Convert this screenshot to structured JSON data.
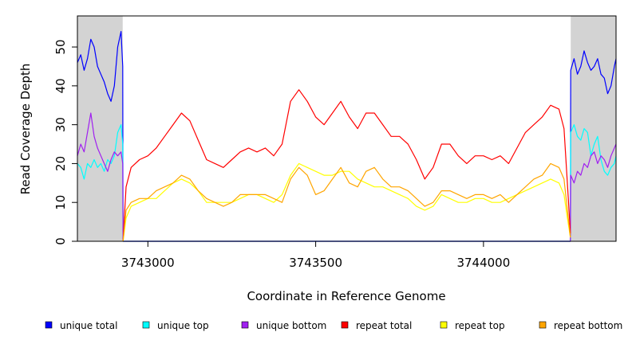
{
  "chart_data": {
    "type": "line",
    "title": "",
    "xlabel": "Coordinate in Reference Genome",
    "ylabel": "Read Coverage Depth",
    "xlim": [
      3742790,
      3744395
    ],
    "ylim": [
      0,
      58
    ],
    "x_ticks": [
      3743000,
      3743500,
      3744000
    ],
    "x_tick_labels": [
      "3743000",
      "3743500",
      "3744000"
    ],
    "y_ticks": [
      0,
      10,
      20,
      30,
      40,
      50
    ],
    "y_tick_labels": [
      "0",
      "10",
      "20",
      "30",
      "40",
      "50"
    ],
    "grid": false,
    "legend": "bottom",
    "shaded_regions": [
      {
        "x_start": 3742790,
        "x_end": 3742925,
        "color": "#d3d3d3"
      },
      {
        "x_start": 3744260,
        "x_end": 3744395,
        "color": "#d3d3d3"
      }
    ],
    "series": [
      {
        "name": "unique total",
        "color": "#0000ff",
        "x": [
          3742790,
          3742800,
          3742810,
          3742820,
          3742830,
          3742840,
          3742850,
          3742860,
          3742870,
          3742880,
          3742890,
          3742900,
          3742910,
          3742920,
          3742925,
          3742926,
          3744259,
          3744260,
          3744270,
          3744280,
          3744290,
          3744300,
          3744310,
          3744320,
          3744330,
          3744340,
          3744350,
          3744360,
          3744370,
          3744380,
          3744390,
          3744395
        ],
        "y": [
          46,
          48,
          44,
          47,
          52,
          50,
          45,
          43,
          41,
          38,
          36,
          40,
          50,
          54,
          45,
          0,
          0,
          44,
          47,
          43,
          45,
          49,
          46,
          44,
          45,
          47,
          43,
          42,
          38,
          40,
          45,
          47
        ]
      },
      {
        "name": "unique top",
        "color": "#00ffff",
        "x": [
          3742790,
          3742800,
          3742810,
          3742820,
          3742830,
          3742840,
          3742850,
          3742860,
          3742870,
          3742880,
          3742890,
          3742900,
          3742910,
          3742920,
          3742925,
          3742926,
          3744259,
          3744260,
          3744270,
          3744280,
          3744290,
          3744300,
          3744310,
          3744320,
          3744330,
          3744340,
          3744350,
          3744360,
          3744370,
          3744380,
          3744390,
          3744395
        ],
        "y": [
          20,
          19,
          16,
          20,
          19,
          21,
          19,
          20,
          18,
          21,
          20,
          22,
          28,
          30,
          25,
          0,
          0,
          28,
          30,
          27,
          26,
          29,
          28,
          22,
          25,
          27,
          21,
          18,
          17,
          19,
          20,
          22
        ]
      },
      {
        "name": "unique bottom",
        "color": "#a020f0",
        "x": [
          3742790,
          3742800,
          3742810,
          3742820,
          3742830,
          3742840,
          3742850,
          3742860,
          3742870,
          3742880,
          3742890,
          3742900,
          3742910,
          3742920,
          3742925,
          3742926,
          3744259,
          3744260,
          3744270,
          3744280,
          3744290,
          3744300,
          3744310,
          3744320,
          3744330,
          3744340,
          3744350,
          3744360,
          3744370,
          3744380,
          3744390,
          3744395
        ],
        "y": [
          22,
          25,
          23,
          28,
          33,
          27,
          24,
          22,
          20,
          18,
          21,
          23,
          22,
          23,
          20,
          0,
          0,
          17,
          15,
          18,
          17,
          20,
          19,
          22,
          23,
          20,
          22,
          21,
          19,
          22,
          24,
          25
        ]
      },
      {
        "name": "repeat total",
        "color": "#ff0000",
        "x": [
          3742926,
          3742935,
          3742950,
          3742975,
          3743000,
          3743025,
          3743050,
          3743075,
          3743100,
          3743125,
          3743150,
          3743175,
          3743200,
          3743225,
          3743250,
          3743275,
          3743300,
          3743325,
          3743350,
          3743375,
          3743400,
          3743425,
          3743450,
          3743475,
          3743500,
          3743525,
          3743550,
          3743575,
          3743600,
          3743625,
          3743650,
          3743675,
          3743700,
          3743725,
          3743750,
          3743775,
          3743800,
          3743825,
          3743850,
          3743875,
          3743900,
          3743925,
          3743950,
          3743975,
          3744000,
          3744025,
          3744050,
          3744075,
          3744100,
          3744125,
          3744150,
          3744175,
          3744200,
          3744225,
          3744240,
          3744250,
          3744259
        ],
        "y": [
          0,
          14,
          19,
          21,
          22,
          24,
          27,
          30,
          33,
          31,
          26,
          21,
          20,
          19,
          21,
          23,
          24,
          23,
          24,
          22,
          25,
          36,
          39,
          36,
          32,
          30,
          33,
          36,
          32,
          29,
          33,
          33,
          30,
          27,
          27,
          25,
          21,
          16,
          19,
          25,
          25,
          22,
          20,
          22,
          22,
          21,
          22,
          20,
          24,
          28,
          30,
          32,
          35,
          34,
          29,
          15,
          2
        ]
      },
      {
        "name": "repeat top",
        "color": "#ffff00",
        "x": [
          3742926,
          3742935,
          3742950,
          3742975,
          3743000,
          3743025,
          3743050,
          3743075,
          3743100,
          3743125,
          3743150,
          3743175,
          3743200,
          3743225,
          3743250,
          3743275,
          3743300,
          3743325,
          3743350,
          3743375,
          3743400,
          3743425,
          3743450,
          3743475,
          3743500,
          3743525,
          3743550,
          3743575,
          3743600,
          3743625,
          3743650,
          3743675,
          3743700,
          3743725,
          3743750,
          3743775,
          3743800,
          3743825,
          3743850,
          3743875,
          3743900,
          3743925,
          3743950,
          3743975,
          3744000,
          3744025,
          3744050,
          3744075,
          3744100,
          3744125,
          3744150,
          3744175,
          3744200,
          3744225,
          3744240,
          3744250,
          3744259
        ],
        "y": [
          0,
          6,
          9,
          10,
          11,
          11,
          13,
          15,
          16,
          15,
          13,
          10,
          10,
          10,
          10,
          11,
          12,
          12,
          11,
          10,
          12,
          17,
          20,
          19,
          18,
          17,
          17,
          18,
          18,
          16,
          15,
          14,
          14,
          13,
          12,
          11,
          9,
          8,
          9,
          12,
          11,
          10,
          10,
          11,
          11,
          10,
          10,
          11,
          12,
          13,
          14,
          15,
          16,
          15,
          12,
          6,
          1
        ]
      },
      {
        "name": "repeat bottom",
        "color": "#ffa500",
        "x": [
          3742926,
          3742935,
          3742950,
          3742975,
          3743000,
          3743025,
          3743050,
          3743075,
          3743100,
          3743125,
          3743150,
          3743175,
          3743200,
          3743225,
          3743250,
          3743275,
          3743300,
          3743325,
          3743350,
          3743375,
          3743400,
          3743425,
          3743450,
          3743475,
          3743500,
          3743525,
          3743550,
          3743575,
          3743600,
          3743625,
          3743650,
          3743675,
          3743700,
          3743725,
          3743750,
          3743775,
          3743800,
          3743825,
          3743850,
          3743875,
          3743900,
          3743925,
          3743950,
          3743975,
          3744000,
          3744025,
          3744050,
          3744075,
          3744100,
          3744125,
          3744150,
          3744175,
          3744200,
          3744225,
          3744240,
          3744250,
          3744259
        ],
        "y": [
          0,
          8,
          10,
          11,
          11,
          13,
          14,
          15,
          17,
          16,
          13,
          11,
          10,
          9,
          10,
          12,
          12,
          12,
          12,
          11,
          10,
          16,
          19,
          17,
          12,
          13,
          16,
          19,
          15,
          14,
          18,
          19,
          16,
          14,
          14,
          13,
          11,
          9,
          10,
          13,
          13,
          12,
          11,
          12,
          12,
          11,
          12,
          10,
          12,
          14,
          16,
          17,
          20,
          19,
          16,
          8,
          1
        ]
      }
    ]
  }
}
